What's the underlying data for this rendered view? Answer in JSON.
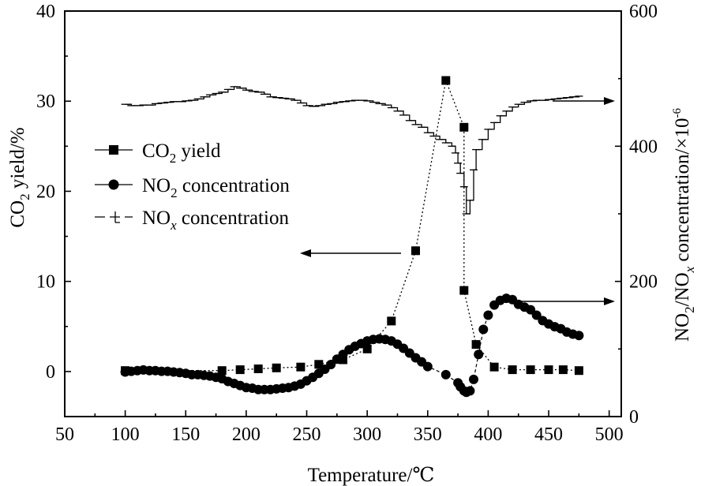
{
  "chart_data": {
    "type": "line",
    "xlabel": "Temperature/℃",
    "ylabel_left": {
      "base": "CO",
      "sub": "2",
      "rest": " yield/%"
    },
    "ylabel_right": {
      "p1": "NO",
      "s1": "2",
      "p2": "/NO",
      "s2": "x",
      "p3": " concentration/×10",
      "sup": "-6"
    },
    "xlim": [
      50,
      510
    ],
    "xticks": [
      "50",
      "100",
      "150",
      "200",
      "250",
      "300",
      "350",
      "400",
      "450",
      "500"
    ],
    "ylim_left": [
      -5,
      40
    ],
    "yticks_left": [
      "0",
      "10",
      "20",
      "30",
      "40"
    ],
    "ylim_right": [
      0,
      600
    ],
    "yticks_right": [
      "0",
      "200",
      "400",
      "600"
    ],
    "legend_position": "center-left",
    "legend": [
      {
        "pre": "CO",
        "sub": "2",
        "post": " yield"
      },
      {
        "pre": "NO",
        "sub": "2",
        "post": " concentration"
      },
      {
        "pre": "NO",
        "sub": "x",
        "post": " concentration",
        "sub_italic": true
      }
    ],
    "series": [
      {
        "axis": "left",
        "marker": "square",
        "x": [
          100,
          180,
          195,
          210,
          225,
          245,
          260,
          280,
          300,
          320,
          340,
          365,
          380,
          380,
          390,
          405,
          420,
          435,
          450,
          462,
          475
        ],
        "y": [
          0.1,
          0.1,
          0.2,
          0.3,
          0.4,
          0.5,
          0.8,
          1.3,
          2.5,
          5.6,
          13.4,
          32.3,
          27.1,
          9.0,
          3.0,
          0.5,
          0.2,
          0.2,
          0.2,
          0.2,
          0.1
        ]
      },
      {
        "axis": "right",
        "marker": "circle",
        "x": [
          100,
          105,
          110,
          115,
          120,
          125,
          130,
          135,
          140,
          145,
          150,
          155,
          160,
          165,
          170,
          175,
          180,
          185,
          190,
          195,
          200,
          205,
          210,
          215,
          220,
          225,
          230,
          235,
          240,
          245,
          250,
          255,
          260,
          265,
          270,
          275,
          280,
          285,
          290,
          295,
          300,
          305,
          310,
          315,
          320,
          325,
          330,
          335,
          340,
          345,
          350,
          365,
          375,
          377,
          380,
          382,
          385,
          388,
          392,
          396,
          400,
          405,
          410,
          415,
          420,
          425,
          430,
          435,
          440,
          445,
          450,
          455,
          460,
          465,
          470,
          475
        ],
        "y": [
          66,
          67,
          68,
          69,
          68,
          68,
          67,
          67,
          66,
          65,
          64,
          62,
          62,
          61,
          60,
          58,
          56,
          52,
          49,
          46,
          43,
          42,
          40,
          40,
          40,
          41,
          42,
          43,
          45,
          48,
          53,
          58,
          64,
          70,
          77,
          85,
          92,
          99,
          104,
          108,
          112,
          114,
          115,
          114,
          112,
          107,
          101,
          94,
          87,
          81,
          74,
          62,
          50,
          44,
          38,
          36,
          38,
          55,
          92,
          129,
          150,
          165,
          172,
          175,
          173,
          166,
          162,
          158,
          150,
          142,
          137,
          133,
          130,
          125,
          122,
          120
        ]
      },
      {
        "axis": "right",
        "marker": "step",
        "x": [
          100,
          105,
          110,
          115,
          120,
          125,
          130,
          135,
          140,
          145,
          150,
          155,
          160,
          165,
          170,
          175,
          180,
          185,
          190,
          195,
          200,
          205,
          210,
          215,
          220,
          225,
          230,
          235,
          240,
          245,
          250,
          255,
          260,
          265,
          270,
          275,
          280,
          285,
          290,
          295,
          300,
          305,
          310,
          315,
          320,
          325,
          330,
          335,
          340,
          345,
          350,
          355,
          360,
          365,
          370,
          373,
          375,
          377,
          380,
          382,
          385,
          388,
          390,
          395,
          400,
          405,
          410,
          415,
          420,
          425,
          430,
          435,
          440,
          445,
          450,
          455,
          460,
          465,
          470,
          475
        ],
        "y": [
          462,
          460,
          460,
          461,
          461,
          463,
          464,
          465,
          466,
          466,
          467,
          468,
          470,
          473,
          476,
          478,
          480,
          484,
          488,
          486,
          483,
          481,
          480,
          477,
          473,
          472,
          471,
          470,
          468,
          464,
          460,
          459,
          460,
          462,
          463,
          465,
          466,
          467,
          468,
          468,
          467,
          465,
          463,
          461,
          457,
          452,
          446,
          438,
          432,
          428,
          420,
          415,
          410,
          405,
          400,
          390,
          375,
          360,
          340,
          300,
          320,
          365,
          395,
          410,
          425,
          435,
          445,
          452,
          458,
          462,
          465,
          467,
          468,
          468,
          469,
          470,
          471,
          472,
          473,
          474
        ]
      }
    ]
  }
}
